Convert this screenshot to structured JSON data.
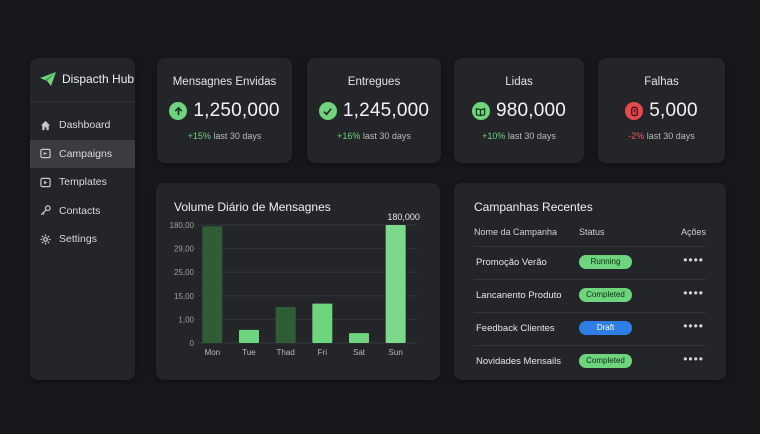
{
  "app": {
    "title": "Dispacth Hub"
  },
  "sidebar": {
    "items": [
      {
        "label": "Dashboard",
        "icon": "home-icon"
      },
      {
        "label": "Campaigns",
        "icon": "campaign-icon",
        "active": true
      },
      {
        "label": "Templates",
        "icon": "template-icon"
      },
      {
        "label": "Contacts",
        "icon": "key-icon"
      },
      {
        "label": "Settings",
        "icon": "gear-icon"
      }
    ]
  },
  "stats": [
    {
      "label": "Mensagnes Envidas",
      "value": "1,250,000",
      "trend": "+15%",
      "period": "last 30 days",
      "icon": "arrow-up-icon",
      "color": "#6fd47e"
    },
    {
      "label": "Entregues",
      "value": "1,245,000",
      "trend": "+16%",
      "period": "last 30 days",
      "icon": "check-icon",
      "color": "#6fd47e"
    },
    {
      "label": "Lidas",
      "value": "980,000",
      "trend": "+10%",
      "period": "last 30 days",
      "icon": "book-icon",
      "color": "#6fd47e"
    },
    {
      "label": "Falhas",
      "value": "5,000",
      "trend": "-2%",
      "period": "last 30 days",
      "icon": "alert-icon",
      "color": "#e5484d"
    }
  ],
  "chart": {
    "title": "Volume Diário de Mensagnes"
  },
  "chart_data": {
    "type": "bar",
    "categories": [
      "Mon",
      "Tue",
      "Thad",
      "Fri",
      "Sat",
      "Sun"
    ],
    "values": [
      178000,
      20000,
      55000,
      60000,
      15000,
      180000
    ],
    "y_ticks": [
      "0",
      "1,00",
      "15,00",
      "25,00",
      "29,00",
      "180,00"
    ],
    "ylim": [
      0,
      180000
    ],
    "annotation": "180,000",
    "colors": {
      "max": "#2e5d37",
      "normal": "#6fd47e",
      "peak": "#7cd88a"
    },
    "grid": true
  },
  "table": {
    "title": "Campanhas Recentes",
    "headers": {
      "name": "Nome da Campanha",
      "status": "Status",
      "actions": "Ações"
    },
    "rows": [
      {
        "name": "Promoção Verão",
        "status": "Running",
        "color": "green"
      },
      {
        "name": "Lancanento Produto",
        "status": "Completed",
        "color": "green"
      },
      {
        "name": "Feedback Clientes",
        "status": "Draft",
        "color": "blue"
      },
      {
        "name": "Novidades Mensails",
        "status": "Completed",
        "color": "green"
      }
    ],
    "more_label": "••••"
  }
}
